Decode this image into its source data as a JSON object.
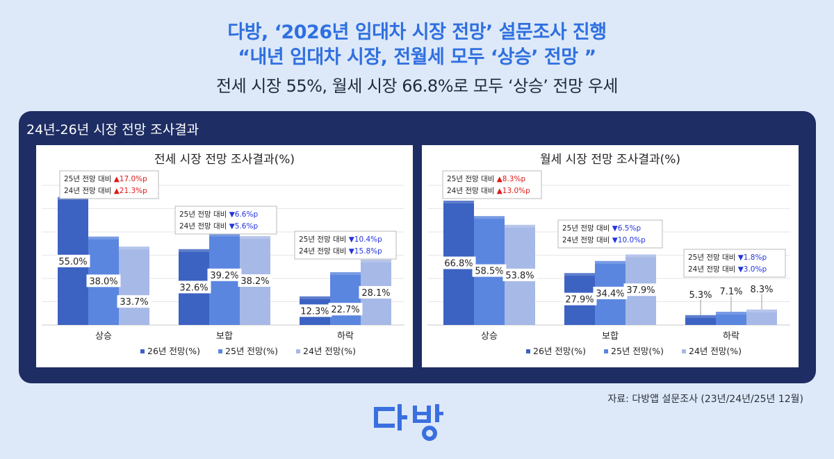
{
  "header": {
    "title_line1": "다방, ‘2026년 임대차 시장 전망’ 설문조사 진행",
    "title_line2": "“내년 임대차 시장, 전월세 모두 ‘상승’ 전망 ”",
    "subtitle": "전세 시장 55%, 월세 시장 66.8%로 모두 ‘상승’ 전망 우세"
  },
  "panel": {
    "title": "24년-26년 시장 전망 조사결과"
  },
  "source": "자료: 다방앱 설문조사 (23년/24년/25년 12월)",
  "logo": {
    "text": "다방"
  },
  "colors": {
    "s26": "#3c62c2",
    "s25": "#5b86df",
    "s24": "#a7b9e6",
    "up": "#e01818",
    "down": "#2233dd"
  },
  "chart_data": [
    {
      "type": "bar",
      "title": "전세 시장 전망 조사결과(%)",
      "categories": [
        "상승",
        "보합",
        "하락"
      ],
      "series": [
        {
          "name": "26년 전망(%)",
          "values": [
            55.0,
            32.6,
            12.3
          ]
        },
        {
          "name": "25년 전망(%)",
          "values": [
            38.0,
            39.2,
            22.7
          ]
        },
        {
          "name": "24년 전망(%)",
          "values": [
            33.7,
            38.2,
            28.1
          ]
        }
      ],
      "value_labels": [
        [
          "55.0%",
          "32.6%",
          "12.3%"
        ],
        [
          "38.0%",
          "39.2%",
          "22.7%"
        ],
        [
          "33.7%",
          "38.2%",
          "28.1%"
        ]
      ],
      "annotations": [
        [
          {
            "prefix": "25년 전망 대비",
            "dir": "up",
            "text": "17.0%p"
          },
          {
            "prefix": "24년 전망 대비",
            "dir": "up",
            "text": "21.3%p"
          }
        ],
        [
          {
            "prefix": "25년 전망 대비",
            "dir": "down",
            "text": "6.6%p"
          },
          {
            "prefix": "24년 전망 대비",
            "dir": "down",
            "text": "5.6%p"
          }
        ],
        [
          {
            "prefix": "25년 전망 대비",
            "dir": "down",
            "text": "10.4%p"
          },
          {
            "prefix": "24년 전망 대비",
            "dir": "down",
            "text": "15.8%p"
          }
        ]
      ],
      "ylim": [
        0,
        60
      ],
      "grid": true,
      "legend": "bottom"
    },
    {
      "type": "bar",
      "title": "월세 시장 전망 조사결과(%)",
      "categories": [
        "상승",
        "보합",
        "하락"
      ],
      "series": [
        {
          "name": "26년 전망(%)",
          "values": [
            66.8,
            27.9,
            5.3
          ]
        },
        {
          "name": "25년 전망(%)",
          "values": [
            58.5,
            34.4,
            7.1
          ]
        },
        {
          "name": "24년 전망(%)",
          "values": [
            53.8,
            37.9,
            8.3
          ]
        }
      ],
      "value_labels": [
        [
          "66.8%",
          "27.9%",
          "5.3%"
        ],
        [
          "58.5%",
          "34.4%",
          "7.1%"
        ],
        [
          "53.8%",
          "37.9%",
          "8.3%"
        ]
      ],
      "annotations": [
        [
          {
            "prefix": "25년 전망 대비",
            "dir": "up",
            "text": "8.3%p"
          },
          {
            "prefix": "24년 전망 대비",
            "dir": "up",
            "text": "13.0%p"
          }
        ],
        [
          {
            "prefix": "25년 전망 대비",
            "dir": "down",
            "text": "6.5%p"
          },
          {
            "prefix": "24년 전망 대비",
            "dir": "down",
            "text": "10.0%p"
          }
        ],
        [
          {
            "prefix": "25년 전망 대비",
            "dir": "down",
            "text": "1.8%p"
          },
          {
            "prefix": "24년 전망 대비",
            "dir": "down",
            "text": "3.0%p"
          }
        ]
      ],
      "ylim": [
        0,
        75
      ],
      "grid": true,
      "legend": "bottom"
    }
  ]
}
